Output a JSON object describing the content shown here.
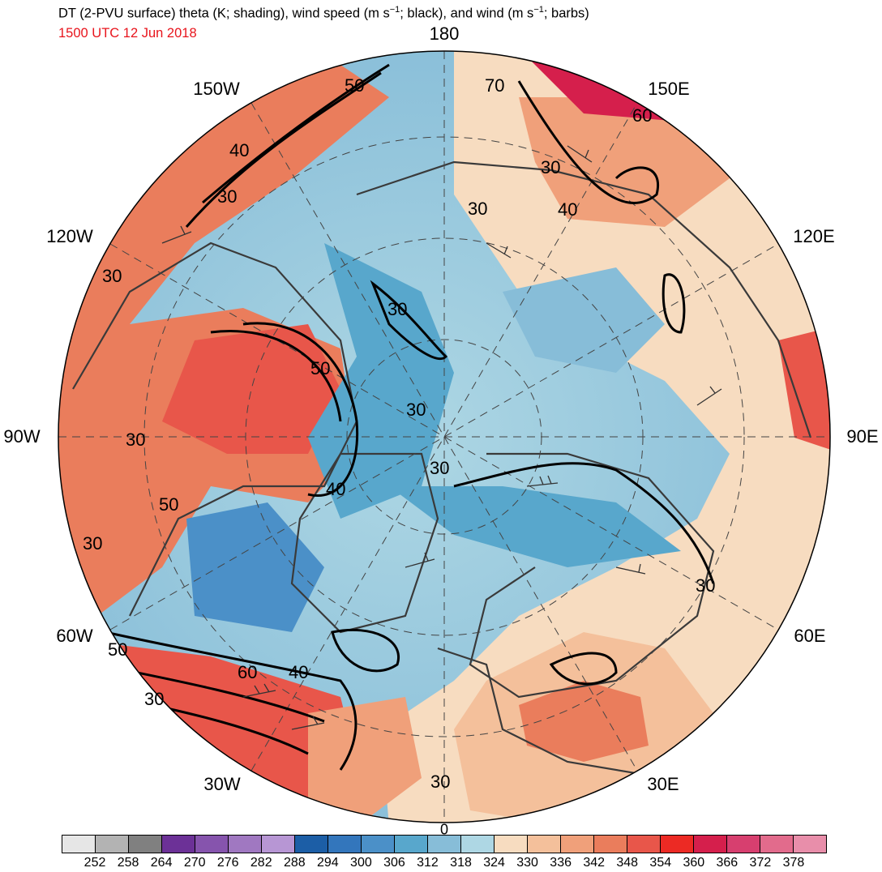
{
  "header": {
    "title_prefix": "DT (2-PVU surface) theta (K; shading), wind speed (m s",
    "title_mid": "; black), and wind (m s",
    "title_suffix": "; barbs)",
    "exp": "−1",
    "valid_time": "1500 UTC 12 Jun 2018"
  },
  "longitude_labels": {
    "top": "180",
    "top_left": "150W",
    "top_right": "150E",
    "upper_left": "120W",
    "upper_right": "120E",
    "left": "90W",
    "right": "90E",
    "lower_left": "60W",
    "lower_right": "60E",
    "bottom_left": "30W",
    "bottom_right": "30E",
    "bottom": "0"
  },
  "contour_labels": [
    "50",
    "70",
    "60",
    "40",
    "30",
    "30",
    "40",
    "30",
    "30",
    "30",
    "30",
    "30",
    "50",
    "30",
    "40",
    "50",
    "30",
    "50",
    "60",
    "40",
    "30",
    "30",
    "30"
  ],
  "colors": {
    "bins": [
      "#e6e6e6",
      "#b3b3b3",
      "#808080",
      "#6c3197",
      "#8654ad",
      "#a078c1",
      "#b796d4",
      "#1c5ea6",
      "#3376bc",
      "#4b90c8",
      "#58a7cc",
      "#87bdd8",
      "#aed7e4",
      "#f7dcc0",
      "#f4c09b",
      "#f0a07a",
      "#ea7d5c",
      "#e8564a",
      "#ec2a24",
      "#d51f4c",
      "#d73f6f",
      "#e26b8c",
      "#e88eaa"
    ],
    "coast": "#3a3a3a",
    "contour": "#000000"
  },
  "colorbar": {
    "ticks": [
      "252",
      "258",
      "264",
      "270",
      "276",
      "282",
      "288",
      "294",
      "300",
      "306",
      "312",
      "318",
      "324",
      "330",
      "336",
      "342",
      "348",
      "354",
      "360",
      "366",
      "372",
      "378"
    ]
  }
}
